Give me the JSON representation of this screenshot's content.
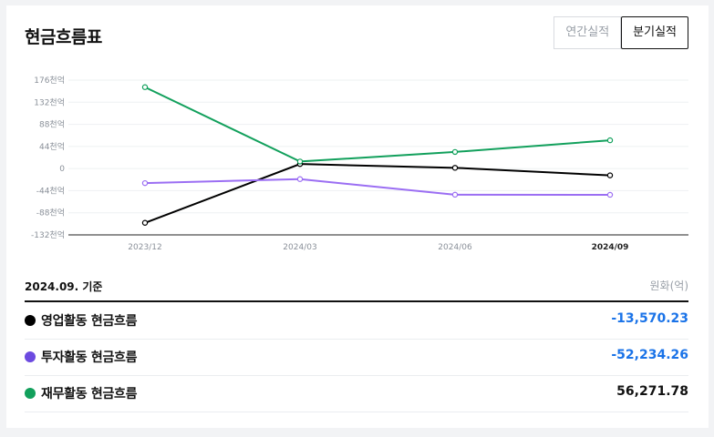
{
  "header": {
    "title": "현금흐름표",
    "tabs": [
      {
        "label": "연간실적",
        "active": false
      },
      {
        "label": "분기실적",
        "active": true
      }
    ]
  },
  "table": {
    "date_label": "2024.09. 기준",
    "unit_label": "원화(억)",
    "rows": [
      {
        "label": "영업활동 현금흐름",
        "value": "-13,570.23",
        "dot_color": "#000000",
        "value_color": "#1a73e8"
      },
      {
        "label": "투자활동 현금흐름",
        "value": "-52,234.26",
        "dot_color": "#6c4ae0",
        "value_color": "#1a73e8"
      },
      {
        "label": "재무활동 현금흐름",
        "value": "56,271.78",
        "dot_color": "#12a05c",
        "value_color": "#111111"
      }
    ]
  },
  "chart_data": {
    "type": "line",
    "x": [
      "2023/12",
      "2024/03",
      "2024/06",
      "2024/09"
    ],
    "y_ticks": [
      "176천억",
      "132천억",
      "88천억",
      "44천억",
      "0",
      "-44천억",
      "-88천억",
      "-132천억"
    ],
    "y_tick_values": [
      176000,
      132000,
      88000,
      44000,
      0,
      -44000,
      -88000,
      -132000
    ],
    "ylim": [
      -132000,
      176000
    ],
    "highlight_x": "2024/09",
    "grid": true,
    "series": [
      {
        "name": "영업활동 현금흐름",
        "color": "#000000",
        "values": [
          -108000,
          9000,
          1500,
          -13570.23
        ]
      },
      {
        "name": "투자활동 현금흐름",
        "color": "#9b6ef3",
        "values": [
          -29000,
          -21000,
          -52000,
          -52234.26
        ]
      },
      {
        "name": "재무활동 현금흐름",
        "color": "#12a05c",
        "values": [
          162000,
          14000,
          33000,
          56271.78
        ]
      }
    ]
  }
}
